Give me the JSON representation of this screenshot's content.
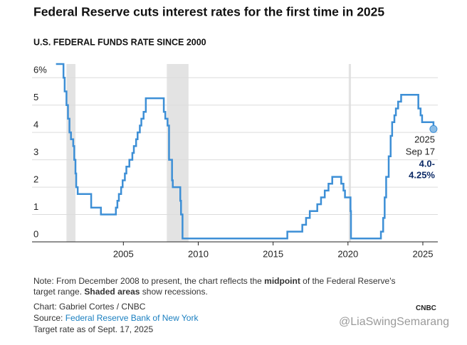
{
  "chart_data": {
    "type": "line",
    "title": "Federal Reserve cuts interest rates for the first time in 2025",
    "subtitle": "U.S. FEDERAL FUNDS RATE SINCE 2000",
    "drawstyle": "steps-post",
    "xlim": [
      1998.9,
      2026.0
    ],
    "xticks": [
      2005,
      2010,
      2015,
      2020,
      2025
    ],
    "ylim": [
      0,
      6.5
    ],
    "yticks": [
      0,
      1,
      2,
      3,
      4,
      5,
      {
        "value": 6,
        "label": "6%"
      }
    ],
    "grid": true,
    "recessions": [
      [
        2001.2,
        2001.8
      ],
      [
        2007.9,
        2009.35
      ],
      [
        2020.05,
        2020.2
      ]
    ],
    "series": [
      {
        "color": "#3d8fd6",
        "x": [
          2000.5,
          2001.0,
          2001.08,
          2001.2,
          2001.3,
          2001.4,
          2001.5,
          2001.65,
          2001.72,
          2001.8,
          2001.85,
          2001.95,
          2002.85,
          2003.5,
          2004.5,
          2004.6,
          2004.7,
          2004.85,
          2004.95,
          2005.1,
          2005.2,
          2005.4,
          2005.6,
          2005.7,
          2005.85,
          2005.95,
          2006.1,
          2006.2,
          2006.35,
          2006.5,
          2007.7,
          2007.8,
          2007.95,
          2008.05,
          2008.25,
          2008.3,
          2008.8,
          2008.85,
          2008.95,
          2015.95,
          2016.95,
          2017.2,
          2017.45,
          2017.95,
          2018.2,
          2018.45,
          2018.7,
          2018.95,
          2019.55,
          2019.7,
          2019.8,
          2020.17,
          2020.2,
          2022.2,
          2022.35,
          2022.45,
          2022.55,
          2022.72,
          2022.85,
          2022.95,
          2023.1,
          2023.2,
          2023.35,
          2023.55,
          2024.7,
          2024.85,
          2024.95,
          2025.71
        ],
        "values": [
          6.5,
          6.0,
          5.5,
          5.0,
          4.5,
          4.0,
          3.75,
          3.5,
          3.0,
          2.5,
          2.0,
          1.75,
          1.25,
          1.0,
          1.25,
          1.5,
          1.75,
          2.0,
          2.25,
          2.5,
          2.75,
          3.0,
          3.25,
          3.5,
          3.75,
          4.0,
          4.25,
          4.5,
          4.75,
          5.25,
          4.75,
          4.5,
          4.25,
          3.0,
          2.25,
          2.0,
          1.5,
          1.0,
          0.125,
          0.375,
          0.625,
          0.875,
          1.125,
          1.375,
          1.625,
          1.875,
          2.125,
          2.375,
          2.125,
          1.875,
          1.625,
          1.125,
          0.125,
          0.375,
          0.875,
          1.625,
          2.375,
          3.125,
          3.875,
          4.375,
          4.625,
          4.875,
          5.125,
          5.375,
          4.875,
          4.625,
          4.375,
          4.125
        ]
      }
    ],
    "annotation": {
      "lines": [
        "2025",
        "Sep 17",
        "4.0-",
        "4.25%"
      ]
    }
  },
  "footer": {
    "note": [
      "Note: From December 2008 to present, the chart reflects the ",
      "midpoint",
      " of the Federal Reserve's target range. ",
      "Shaded areas",
      " show recessions."
    ],
    "credit": "Chart: Gabriel Cortes / CNBC",
    "source_prefix": "Source: ",
    "source_link": "Federal Reserve Bank of New York",
    "asof": "Target rate as of Sept. 17, 2025",
    "logo": "CNBC",
    "watermark": "@LiaSwingSemarang"
  }
}
